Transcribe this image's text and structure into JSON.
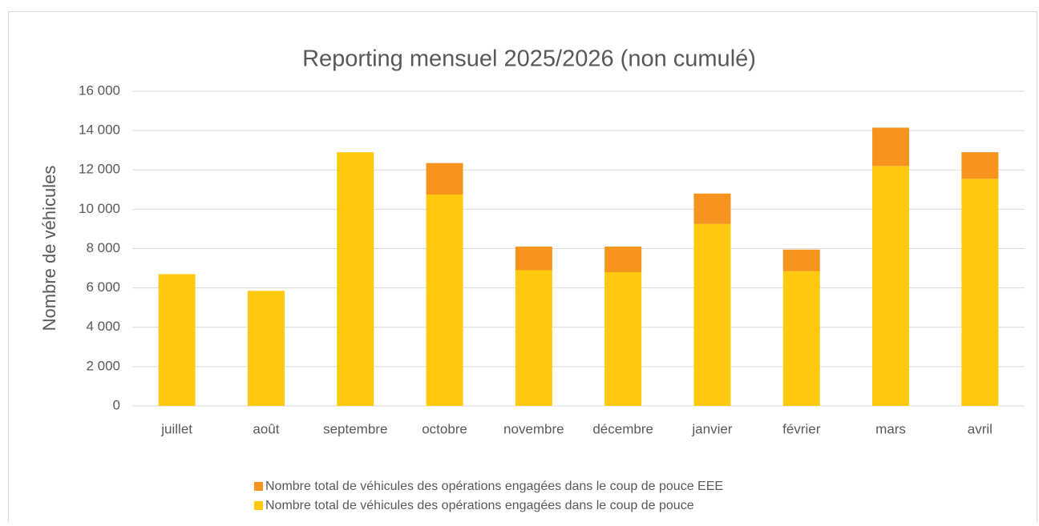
{
  "chart_data": {
    "type": "stacked_bar",
    "title": "Reporting mensuel 2025/2026 (non cumulé)",
    "y_label": "Nombre de véhicules",
    "categories": [
      "juillet",
      "août",
      "septembre",
      "octobre",
      "novembre",
      "décembre",
      "janvier",
      "février",
      "mars",
      "avril"
    ],
    "series": [
      {
        "name": "Nombre total de véhicules des opérations engagées dans le coup de pouce",
        "color": "#ffc90e",
        "values": [
          6700,
          5850,
          12900,
          10750,
          6900,
          6800,
          9250,
          6850,
          12200,
          11550
        ]
      },
      {
        "name": "Nombre total de véhicules des opérations engagées dans le coup de pouce EEE",
        "color": "#f7941d",
        "values": [
          0,
          0,
          0,
          1600,
          1200,
          1300,
          1550,
          1100,
          1950,
          1350
        ]
      }
    ],
    "ylim": [
      0,
      16000
    ],
    "yticks": [
      0,
      {
        "value": 2000,
        "label": "2 000"
      },
      {
        "value": 4000,
        "label": "4 000"
      },
      {
        "value": 6000,
        "label": "6 000"
      },
      {
        "value": 8000,
        "label": "8 000"
      },
      {
        "value": 10000,
        "label": "10 000"
      },
      {
        "value": 12000,
        "label": "12 000"
      },
      {
        "value": 14000,
        "label": "14 000"
      },
      {
        "value": 16000,
        "label": "16 000"
      }
    ],
    "grid": true
  }
}
